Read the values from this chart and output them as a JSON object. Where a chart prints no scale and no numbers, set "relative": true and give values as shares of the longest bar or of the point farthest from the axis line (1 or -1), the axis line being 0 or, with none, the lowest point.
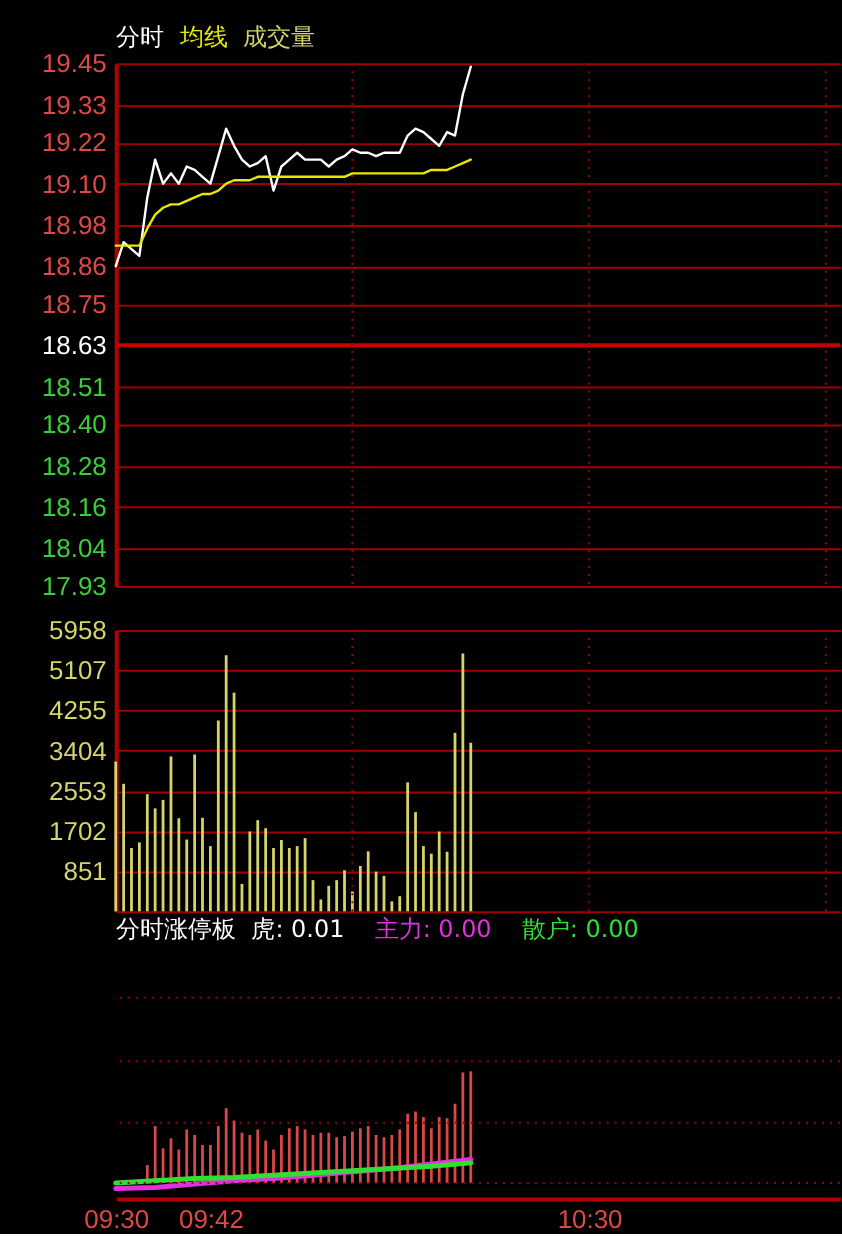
{
  "chart_data": [
    {
      "type": "line",
      "tick_labels": "y",
      "grid": "y",
      "x": [
        9.5,
        9.5167,
        9.5333,
        9.55,
        9.5667,
        9.5833,
        9.6,
        9.6167,
        9.6333,
        9.65,
        9.6667,
        9.6833,
        9.7,
        9.7167,
        9.7333,
        9.75,
        9.7667,
        9.7833,
        9.8,
        9.8167,
        9.8333,
        9.85,
        9.8667,
        9.8833,
        9.9,
        9.9167,
        9.9333,
        9.95,
        9.9667,
        9.9833,
        10.0,
        10.0167,
        10.0333,
        10.05,
        10.0667,
        10.0833,
        10.1,
        10.1167,
        10.1333,
        10.15,
        10.1667,
        10.1833,
        10.2,
        10.2167,
        10.2333,
        10.25
      ],
      "series": [
        {
          "name": "分时",
          "color": "#ffffff",
          "values": [
            18.86,
            18.93,
            18.91,
            18.89,
            19.06,
            19.17,
            19.1,
            19.13,
            19.1,
            19.15,
            19.14,
            19.12,
            19.1,
            19.18,
            19.26,
            19.21,
            19.17,
            19.15,
            19.16,
            19.18,
            19.08,
            19.15,
            19.17,
            19.19,
            19.17,
            19.17,
            19.17,
            19.15,
            19.17,
            19.18,
            19.2,
            19.19,
            19.19,
            19.18,
            19.19,
            19.19,
            19.19,
            19.24,
            19.26,
            19.25,
            19.23,
            19.21,
            19.25,
            19.24,
            19.36,
            19.44
          ]
        },
        {
          "name": "均线",
          "color": "#e8e800",
          "values": [
            18.92,
            18.92,
            18.92,
            18.92,
            18.97,
            19.01,
            19.03,
            19.04,
            19.04,
            19.05,
            19.06,
            19.07,
            19.07,
            19.08,
            19.1,
            19.11,
            19.11,
            19.11,
            19.12,
            19.12,
            19.12,
            19.12,
            19.12,
            19.12,
            19.12,
            19.12,
            19.12,
            19.12,
            19.12,
            19.12,
            19.13,
            19.13,
            19.13,
            19.13,
            19.13,
            19.13,
            19.13,
            19.13,
            19.13,
            19.13,
            19.14,
            19.14,
            19.14,
            19.15,
            19.16,
            19.17
          ]
        }
      ],
      "xlim": [
        9.5,
        11.03
      ],
      "ylim": [
        17.93,
        19.45
      ],
      "yticks": [
        17.93,
        18.04,
        18.16,
        18.28,
        {
          "value": 18.4,
          "label": "18.40"
        },
        18.51,
        18.63,
        18.75,
        18.86,
        18.98,
        {
          "value": 19.1,
          "label": "19.10"
        },
        19.22,
        19.33,
        19.45
      ],
      "ref_lines": [
        {
          "axis": "y",
          "value": 18.63,
          "color": "#c80000"
        },
        {
          "axis": "x",
          "value": 10,
          "color": "#a00000",
          "line_style": "dotted"
        },
        {
          "axis": "x",
          "value": 10.5,
          "color": "#a00000",
          "line_style": "dotted"
        },
        {
          "axis": "x",
          "value": 11,
          "color": "#a00000",
          "line_style": "dotted"
        }
      ]
    },
    {
      "type": "bar",
      "tick_labels": "y",
      "grid": "y",
      "x": [
        9.5,
        9.5167,
        9.5333,
        9.55,
        9.5667,
        9.5833,
        9.6,
        9.6167,
        9.6333,
        9.65,
        9.6667,
        9.6833,
        9.7,
        9.7167,
        9.7333,
        9.75,
        9.7667,
        9.7833,
        9.8,
        9.8167,
        9.8333,
        9.85,
        9.8667,
        9.8833,
        9.9,
        9.9167,
        9.9333,
        9.95,
        9.9667,
        9.9833,
        10.0,
        10.0167,
        10.0333,
        10.05,
        10.0667,
        10.0833,
        10.1,
        10.1167,
        10.1333,
        10.15,
        10.1667,
        10.1833,
        10.2,
        10.2167,
        10.2333,
        10.25
      ],
      "series": [
        {
          "name": "成交量",
          "color": "#d4d46a",
          "values": [
            3170,
            2700,
            1340,
            1460,
            2480,
            2180,
            2360,
            3280,
            1970,
            1520,
            3320,
            1980,
            1380,
            4040,
            5420,
            4630,
            580,
            1690,
            1930,
            1760,
            1340,
            1510,
            1340,
            1380,
            1550,
            660,
            250,
            540,
            660,
            870,
            420,
            960,
            1270,
            840,
            750,
            210,
            320,
            2730,
            2100,
            1380,
            1220,
            1690,
            1260,
            3780,
            5460,
            3570
          ]
        }
      ],
      "xlim": [
        9.5,
        11.03
      ],
      "ylim": [
        0,
        5958
      ],
      "yticks": [
        {
          "value": 0,
          "label": null
        },
        851,
        1702,
        2553,
        3404,
        4255,
        5107,
        5958
      ],
      "ref_lines": [
        {
          "axis": "x",
          "value": 10,
          "color": "#a00000",
          "line_style": "dotted"
        },
        {
          "axis": "x",
          "value": 10.5,
          "color": "#a00000",
          "line_style": "dotted"
        },
        {
          "axis": "x",
          "value": 11,
          "color": "#a00000",
          "line_style": "dotted"
        }
      ]
    },
    {
      "type": "bar",
      "relative": true,
      "title": "分时涨停板",
      "annotations": [
        "虎: 0.01"
      ],
      "series": [
        {
          "color": "#d84848",
          "x": [
            9.5667,
            9.5833,
            9.6,
            9.6167,
            9.6333,
            9.65,
            9.6667,
            9.6833,
            9.7,
            9.7167,
            9.7333,
            9.75,
            9.7667,
            9.7833,
            9.8,
            9.8167,
            9.8333,
            9.85,
            9.8667,
            9.8833,
            9.9,
            9.9167,
            9.9333,
            9.95,
            9.9667,
            9.9833,
            10.0,
            10.0167,
            10.0333,
            10.05,
            10.0667,
            10.0833,
            10.1,
            10.1167,
            10.1333,
            10.15,
            10.1667,
            10.1833,
            10.2,
            10.2167,
            10.2333,
            10.25
          ],
          "values": [
            0.16,
            0.51,
            0.31,
            0.4,
            0.3,
            0.48,
            0.43,
            0.34,
            0.34,
            0.51,
            0.67,
            0.56,
            0.45,
            0.43,
            0.48,
            0.38,
            0.3,
            0.43,
            0.49,
            0.51,
            0.48,
            0.43,
            0.45,
            0.45,
            0.41,
            0.42,
            0.46,
            0.49,
            0.51,
            0.43,
            0.41,
            0.43,
            0.48,
            0.62,
            0.64,
            0.59,
            0.49,
            0.59,
            0.58,
            0.71,
            0.99,
            1
          ]
        },
        {
          "name": "主力: 0.00",
          "type": "line",
          "color": "#e030e0",
          "x": [
            9.5,
            9.5833,
            9.6667,
            9.75,
            9.8333,
            9.9167,
            10.0,
            10.0833,
            10.1667,
            10.25
          ],
          "values": [
            -0.05,
            -0.04,
            -0.01,
            0.02,
            0.04,
            0.07,
            0.1,
            0.13,
            0.17,
            0.21
          ]
        },
        {
          "name": "散户: 0.00",
          "type": "line",
          "color": "#30e030",
          "x": [
            9.5,
            9.5833,
            9.6667,
            9.75,
            9.8333,
            9.9167,
            10.0,
            10.0833,
            10.1667,
            10.25
          ],
          "values": [
            0,
            0.02,
            0.04,
            0.05,
            0.07,
            0.09,
            0.11,
            0.13,
            0.15,
            0.18
          ]
        }
      ],
      "xlim": [
        9.5,
        11.03
      ],
      "xticks": [
        {
          "value": 9.5,
          "label": "09:30"
        },
        {
          "value": 9.7,
          "label": "09:42"
        },
        {
          "value": 10.5,
          "label": "10:30"
        }
      ],
      "ref_lines": [
        {
          "axis": "y",
          "value": 0,
          "color": "#a00000",
          "line_style": "dotted"
        },
        {
          "axis": "y",
          "value": 0.54,
          "color": "#a00000",
          "line_style": "dotted"
        },
        {
          "axis": "y",
          "value": 1.09,
          "color": "#a00000",
          "line_style": "dotted"
        },
        {
          "axis": "y",
          "value": 1.66,
          "color": "#a00000",
          "line_style": "dotted"
        }
      ]
    }
  ]
}
